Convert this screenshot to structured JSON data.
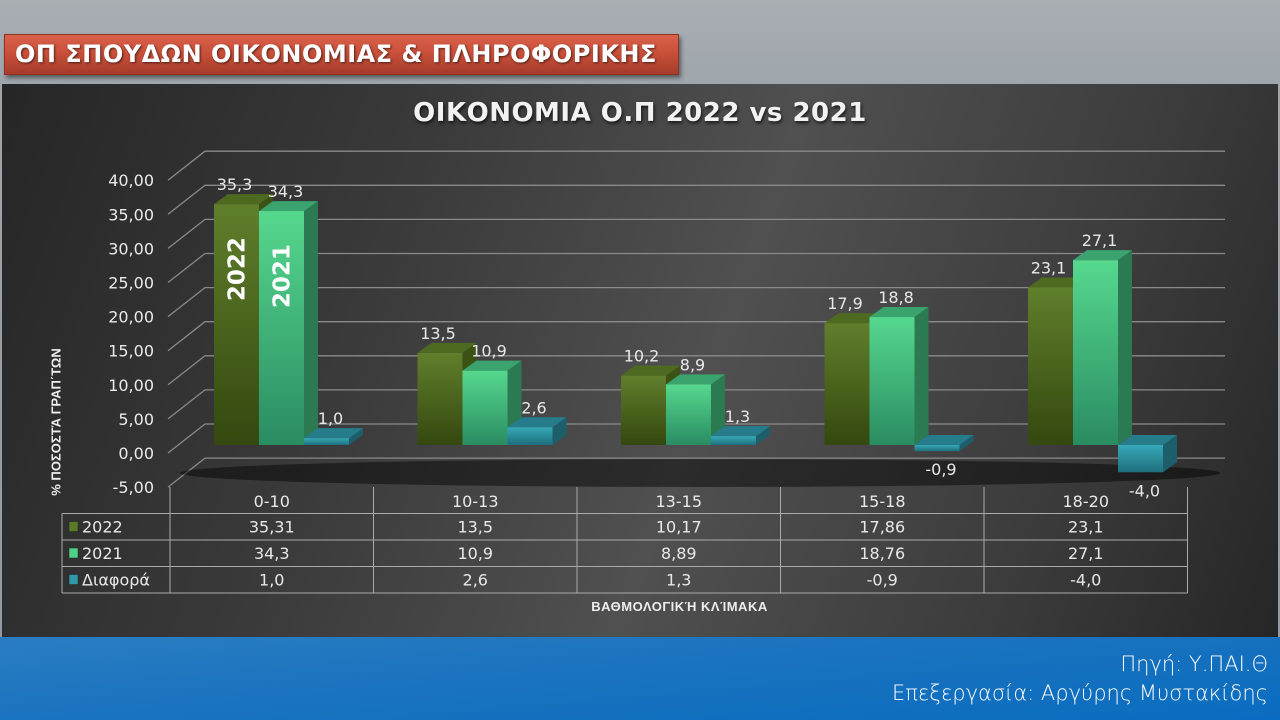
{
  "header": {
    "title": "ΟΠ ΣΠΟΥΔΩΝ ΟΙΚΟΝΟΜΙΑΣ & ΠΛΗΡΟΦΟΡΙΚΗΣ"
  },
  "footer": {
    "source": "Πηγή: Υ.ΠΑΙ.Θ",
    "credit": "Επεξεργασία: Αργύρης Μυστακίδης"
  },
  "colors": {
    "series_2022": "#5a7a28",
    "series_2021": "#4fd089",
    "series_diff": "#2e9aa8",
    "footer_blue": "#1872be",
    "banner_red": "#c9503a"
  },
  "chart_data": {
    "type": "bar",
    "subtype": "3d-clustered-column-with-data-table",
    "title": "ΟΙΚΟΝΟΜΙΑ  Ο.Π 2022 vs 2021",
    "xlabel": "ΒΑΘΜΟΛΟΓΙΚΉ ΚΛΊΜΑΚΑ",
    "ylabel": "% ΠΟΣΟΣΤΆ ΓΡΑΠ΄ΤΩΝ",
    "ylim": [
      -5,
      40
    ],
    "yticks": [
      "40,00",
      "35,00",
      "30,00",
      "25,00",
      "20,00",
      "15,00",
      "10,00",
      "5,00",
      "0,00",
      "-5,00"
    ],
    "grid": true,
    "legend_position": "data-table",
    "categories": [
      "0-10",
      "10-13",
      "13-15",
      "15-18",
      "18-20"
    ],
    "series": [
      {
        "name": "2022",
        "values": [
          35.31,
          13.5,
          10.17,
          17.86,
          23.1
        ],
        "bar_labels": [
          "35,3",
          "13,5",
          "10,2",
          "17,9",
          "23,1"
        ],
        "table_labels": [
          "35,31",
          "13,5",
          "10,17",
          "17,86",
          "23,1"
        ],
        "inbar_label": "2022"
      },
      {
        "name": "2021",
        "values": [
          34.3,
          10.9,
          8.89,
          18.76,
          27.1
        ],
        "bar_labels": [
          "34,3",
          "10,9",
          "8,9",
          "18,8",
          "27,1"
        ],
        "table_labels": [
          "34,3",
          "10,9",
          "8,89",
          "18,76",
          "27,1"
        ],
        "inbar_label": "2021"
      },
      {
        "name": "Διαφορά",
        "values": [
          1.0,
          2.6,
          1.3,
          -0.9,
          -4.0
        ],
        "bar_labels": [
          "1,0",
          "2,6",
          "1,3",
          "-0,9",
          "-4,0"
        ],
        "table_labels": [
          "1,0",
          "2,6",
          "1,3",
          "-0,9",
          "-4,0"
        ]
      }
    ]
  }
}
